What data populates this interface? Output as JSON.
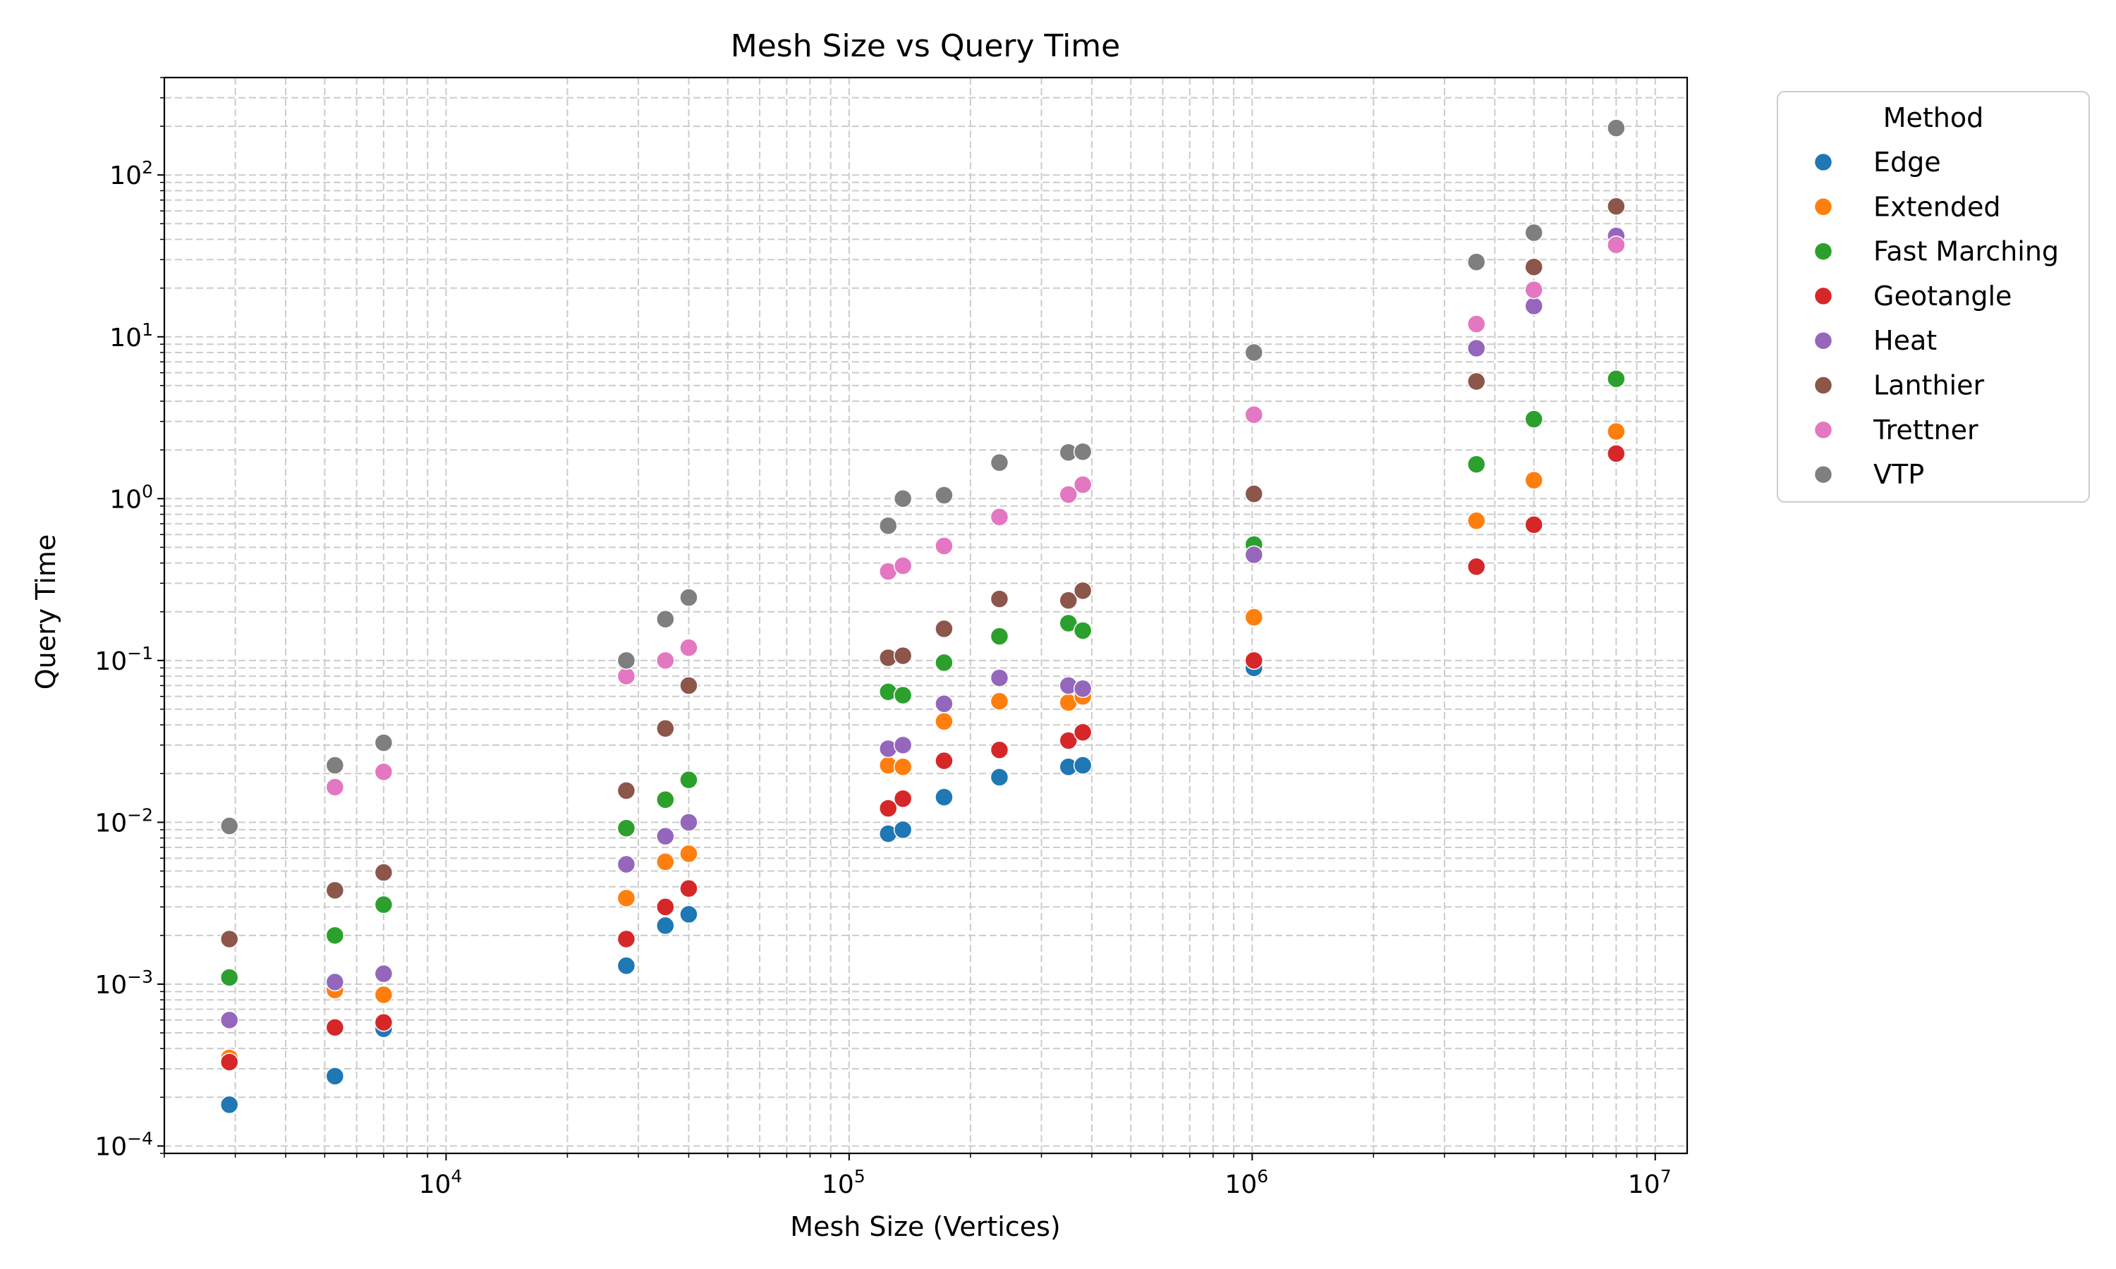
{
  "chart_data": {
    "type": "scatter",
    "title": "Mesh Size vs Query Time",
    "xlabel": "Mesh Size (Vertices)",
    "ylabel": "Query Time",
    "xscale": "log",
    "yscale": "log",
    "xlim": [
      2000,
      12000000
    ],
    "ylim": [
      9e-05,
      400
    ],
    "grid": "both major and minor, dashed",
    "x_ticks": [
      {
        "value": 10000,
        "base": "10",
        "exp": "4"
      },
      {
        "value": 100000,
        "base": "10",
        "exp": "5"
      },
      {
        "value": 1000000,
        "base": "10",
        "exp": "6"
      },
      {
        "value": 10000000,
        "base": "10",
        "exp": "7"
      }
    ],
    "y_ticks": [
      {
        "value": 0.0001,
        "base": "10",
        "exp": "−4"
      },
      {
        "value": 0.001,
        "base": "10",
        "exp": "−3"
      },
      {
        "value": 0.01,
        "base": "10",
        "exp": "−2"
      },
      {
        "value": 0.1,
        "base": "10",
        "exp": "−1"
      },
      {
        "value": 1,
        "base": "10",
        "exp": "0"
      },
      {
        "value": 10,
        "base": "10",
        "exp": "1"
      },
      {
        "value": 100,
        "base": "10",
        "exp": "2"
      }
    ],
    "legend": {
      "title": "Method",
      "placement": "outside right, upper"
    },
    "series": [
      {
        "name": "Edge",
        "color": "#1f77b4",
        "points": [
          [
            2900,
            0.00018
          ],
          [
            5300,
            0.00027
          ],
          [
            7000,
            0.00053
          ],
          [
            28000,
            0.0013
          ],
          [
            35000,
            0.0023
          ],
          [
            40000,
            0.0027
          ],
          [
            125000,
            0.0085
          ],
          [
            136000,
            0.009
          ],
          [
            172000,
            0.0143
          ],
          [
            236000,
            0.019
          ],
          [
            350000,
            0.022
          ],
          [
            380000,
            0.0225
          ],
          [
            1010000,
            0.09
          ]
        ]
      },
      {
        "name": "Extended",
        "color": "#ff7f0e",
        "points": [
          [
            2900,
            0.00035
          ],
          [
            5300,
            0.00092
          ],
          [
            7000,
            0.00086
          ],
          [
            28000,
            0.0034
          ],
          [
            35000,
            0.0057
          ],
          [
            40000,
            0.0064
          ],
          [
            125000,
            0.0225
          ],
          [
            136000,
            0.022
          ],
          [
            172000,
            0.042
          ],
          [
            236000,
            0.056
          ],
          [
            350000,
            0.055
          ],
          [
            380000,
            0.06
          ],
          [
            1010000,
            0.185
          ],
          [
            3600000,
            0.73
          ],
          [
            5000000,
            1.3
          ],
          [
            8000000,
            2.6
          ]
        ]
      },
      {
        "name": "Fast Marching",
        "color": "#2ca02c",
        "points": [
          [
            2900,
            0.0011
          ],
          [
            5300,
            0.002
          ],
          [
            7000,
            0.0031
          ],
          [
            28000,
            0.0092
          ],
          [
            35000,
            0.0138
          ],
          [
            40000,
            0.0183
          ],
          [
            125000,
            0.064
          ],
          [
            136000,
            0.061
          ],
          [
            172000,
            0.097
          ],
          [
            236000,
            0.141
          ],
          [
            350000,
            0.17
          ],
          [
            380000,
            0.153
          ],
          [
            1010000,
            0.52
          ],
          [
            3600000,
            1.63
          ],
          [
            5000000,
            3.1
          ],
          [
            8000000,
            5.5
          ]
        ]
      },
      {
        "name": "Geotangle",
        "color": "#d62728",
        "points": [
          [
            2900,
            0.00033
          ],
          [
            5300,
            0.00054
          ],
          [
            7000,
            0.00058
          ],
          [
            28000,
            0.0019
          ],
          [
            35000,
            0.003
          ],
          [
            40000,
            0.0039
          ],
          [
            125000,
            0.0122
          ],
          [
            136000,
            0.014
          ],
          [
            172000,
            0.024
          ],
          [
            236000,
            0.028
          ],
          [
            350000,
            0.032
          ],
          [
            380000,
            0.036
          ],
          [
            1010000,
            0.1
          ],
          [
            3600000,
            0.38
          ],
          [
            5000000,
            0.69
          ],
          [
            8000000,
            1.9
          ]
        ]
      },
      {
        "name": "Heat",
        "color": "#9467bd",
        "points": [
          [
            2900,
            0.0006
          ],
          [
            5300,
            0.00103
          ],
          [
            7000,
            0.00116
          ],
          [
            28000,
            0.0055
          ],
          [
            35000,
            0.0082
          ],
          [
            40000,
            0.01
          ],
          [
            125000,
            0.0285
          ],
          [
            136000,
            0.03
          ],
          [
            172000,
            0.054
          ],
          [
            236000,
            0.078
          ],
          [
            350000,
            0.07
          ],
          [
            380000,
            0.067
          ],
          [
            1010000,
            0.45
          ],
          [
            3600000,
            8.5
          ],
          [
            5000000,
            15.5
          ],
          [
            8000000,
            42
          ]
        ]
      },
      {
        "name": "Lanthier",
        "color": "#8c564b",
        "points": [
          [
            2900,
            0.0019
          ],
          [
            5300,
            0.0038
          ],
          [
            7000,
            0.0049
          ],
          [
            28000,
            0.0157
          ],
          [
            35000,
            0.038
          ],
          [
            40000,
            0.07
          ],
          [
            125000,
            0.104
          ],
          [
            136000,
            0.107
          ],
          [
            172000,
            0.157
          ],
          [
            236000,
            0.24
          ],
          [
            350000,
            0.235
          ],
          [
            380000,
            0.27
          ],
          [
            1010000,
            1.07
          ],
          [
            3600000,
            5.3
          ],
          [
            5000000,
            27
          ],
          [
            8000000,
            64
          ]
        ]
      },
      {
        "name": "Trettner",
        "color": "#e377c2",
        "points": [
          [
            5300,
            0.0165
          ],
          [
            7000,
            0.0205
          ],
          [
            28000,
            0.08
          ],
          [
            35000,
            0.1
          ],
          [
            40000,
            0.12
          ],
          [
            125000,
            0.355
          ],
          [
            136000,
            0.385
          ],
          [
            172000,
            0.51
          ],
          [
            236000,
            0.77
          ],
          [
            350000,
            1.06
          ],
          [
            380000,
            1.22
          ],
          [
            1010000,
            3.3
          ],
          [
            3600000,
            12
          ],
          [
            5000000,
            19.5
          ],
          [
            8000000,
            37
          ]
        ]
      },
      {
        "name": "VTP",
        "color": "#7f7f7f",
        "points": [
          [
            2900,
            0.0095
          ],
          [
            5300,
            0.0225
          ],
          [
            7000,
            0.031
          ],
          [
            28000,
            0.1
          ],
          [
            35000,
            0.18
          ],
          [
            40000,
            0.245
          ],
          [
            125000,
            0.68
          ],
          [
            136000,
            1.0
          ],
          [
            172000,
            1.05
          ],
          [
            236000,
            1.67
          ],
          [
            350000,
            1.93
          ],
          [
            380000,
            1.95
          ],
          [
            1010000,
            8.0
          ],
          [
            3600000,
            29
          ],
          [
            5000000,
            44
          ],
          [
            8000000,
            195
          ]
        ]
      }
    ]
  }
}
